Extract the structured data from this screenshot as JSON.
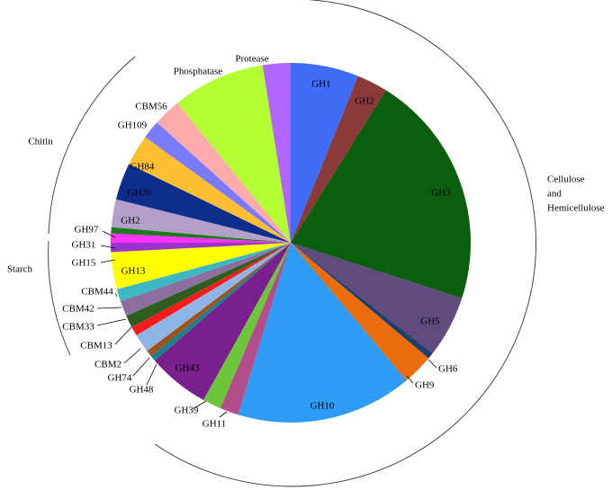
{
  "chart_data": {
    "type": "pie",
    "categories": [
      "GH1",
      "GH2",
      "GH3",
      "GH5",
      "GH6",
      "GH9",
      "GH10",
      "GH11",
      "GH39",
      "GH43",
      "GH48",
      "GH74",
      "CBM2",
      "CBM13",
      "CBM33",
      "CBM42",
      "CBM44",
      "GH13",
      "GH15",
      "GH31",
      "GH97",
      "GH2",
      "GH20",
      "GH84",
      "GH109",
      "CBM56",
      "Phosphatase",
      "Protease"
    ],
    "values": [
      22,
      10,
      76,
      20,
      2,
      10,
      57,
      6,
      6,
      20,
      2,
      2,
      6,
      3,
      4,
      5,
      4,
      12,
      3,
      3,
      2,
      9,
      12,
      10,
      6,
      9,
      30,
      9
    ],
    "colors": [
      "#3f6cf7",
      "#8b3a3a",
      "#0b5e0b",
      "#5f4b7e",
      "#1f3f6e",
      "#e96d0e",
      "#2e9bf5",
      "#b34d8b",
      "#6cc63a",
      "#7a1f8e",
      "#1f7f8a",
      "#a0521a",
      "#8fb4e6",
      "#ff1a1a",
      "#2e5e1e",
      "#8c6fa0",
      "#3cb7c4",
      "#ffff00",
      "#9933cc",
      "#ff33ff",
      "#1e7a1e",
      "#b3a0c9",
      "#0d2e8c",
      "#ffbf33",
      "#7b7bff",
      "#ffaaaa",
      "#b3ff33",
      "#b366ff"
    ],
    "groups": [
      {
        "lines": [
          "Cellulose",
          "and",
          "Hemicellulose"
        ]
      },
      {
        "lines": [
          "Chitin"
        ]
      },
      {
        "lines": [
          "Starch"
        ]
      }
    ]
  }
}
